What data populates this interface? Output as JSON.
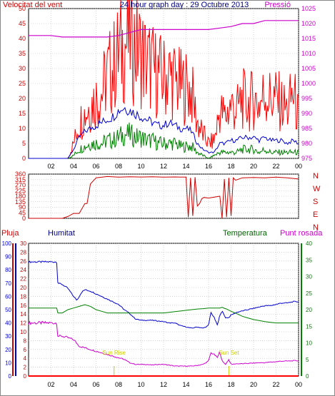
{
  "header": {
    "title": "24 hour graph day : 29 Octubre 2013",
    "wind_label": "Velocitat del vent",
    "pressure_label": "Pressió"
  },
  "bottom_header": {
    "rain_label": "Pluja",
    "humidity_label": "Humitat",
    "temperature_label": "Temperatura",
    "dewpoint_label": "Punt rosada"
  },
  "colors": {
    "wind_speed": "#ff0000",
    "wind_gust": "#ff0000",
    "wind_avg": "#0000cc",
    "wind_low": "#008000",
    "pressure": "#cc00cc",
    "direction": "#cc0000",
    "rain": "#ff0000",
    "humidity": "#0000cc",
    "temperature": "#008000",
    "dewpoint": "#cc00cc",
    "sun": "#cccc00"
  },
  "chart_data": [
    {
      "type": "line",
      "name": "wind",
      "x_tick_labels": [
        "02",
        "04",
        "06",
        "08",
        "10",
        "12",
        "14",
        "16",
        "18",
        "20",
        "22",
        "00"
      ],
      "xlim": [
        0,
        24
      ],
      "ylim_left": [
        0,
        50
      ],
      "left_ticks": [
        "0",
        "5",
        "10",
        "15",
        "20",
        "25",
        "30",
        "35",
        "40",
        "45",
        "50"
      ],
      "ylim_right": [
        975,
        1025
      ],
      "right_ticks": [
        "975",
        "980",
        "985",
        "990",
        "995",
        "1000",
        "1005",
        "1010",
        "1015",
        "1020",
        "1025"
      ],
      "series": [
        {
          "name": "Pressió",
          "axis": "right",
          "x": [
            0,
            1,
            2,
            3,
            4,
            5,
            6,
            7,
            8,
            9,
            10,
            11,
            12,
            13,
            14,
            15,
            16,
            17,
            18,
            19,
            20,
            21,
            22,
            23,
            24
          ],
          "values": [
            1016,
            1016,
            1016,
            1015.5,
            1015.5,
            1015.5,
            1015.5,
            1015.5,
            1016,
            1017,
            1018,
            1018,
            1018,
            1018,
            1018,
            1018,
            1018,
            1018.5,
            1019,
            1020,
            1020,
            1021,
            1021,
            1021,
            1021
          ]
        },
        {
          "name": "gust",
          "x": [
            0,
            3.5,
            4,
            4.5,
            5,
            5.5,
            6,
            6.5,
            7,
            7.5,
            8,
            8.5,
            9,
            9.5,
            10,
            10.5,
            11,
            11.5,
            12,
            12.5,
            13,
            13.5,
            14,
            14.5,
            15,
            15.5,
            16,
            16.5,
            17,
            17.5,
            18,
            18.5,
            19,
            19.5,
            20,
            20.5,
            21,
            21.5,
            22,
            22.5,
            23,
            23.5,
            24
          ],
          "values": [
            0,
            0,
            5,
            12,
            15,
            18,
            20,
            22,
            28,
            30,
            35,
            38,
            40,
            38,
            35,
            32,
            30,
            28,
            27,
            28,
            26,
            24,
            24,
            22,
            12,
            8,
            5,
            6,
            16,
            14,
            18,
            16,
            20,
            18,
            20,
            18,
            22,
            20,
            20,
            18,
            16,
            22,
            14
          ]
        },
        {
          "name": "avg",
          "x": [
            0,
            3.5,
            4,
            4.5,
            5,
            5.5,
            6,
            6.5,
            7,
            7.5,
            8,
            8.5,
            9,
            9.5,
            10,
            10.5,
            11,
            11.5,
            12,
            12.5,
            13,
            13.5,
            14,
            14.5,
            15,
            15.5,
            16,
            16.5,
            17,
            17.5,
            18,
            18.5,
            19,
            19.5,
            20,
            20.5,
            21,
            21.5,
            22,
            22.5,
            23,
            23.5,
            24
          ],
          "values": [
            0,
            0,
            3,
            7,
            9,
            10,
            11,
            12,
            13,
            14,
            16,
            17,
            16,
            15,
            14,
            13,
            12,
            11,
            11,
            12,
            11,
            10,
            10,
            9,
            5,
            3,
            2,
            2,
            5,
            5,
            6,
            6,
            7,
            7,
            7,
            6,
            7,
            6,
            6,
            6,
            5,
            6,
            5
          ]
        },
        {
          "name": "low",
          "x": [
            0,
            3.5,
            4,
            4.5,
            5,
            5.5,
            6,
            6.5,
            7,
            7.5,
            8,
            8.5,
            9,
            9.5,
            10,
            10.5,
            11,
            11.5,
            12,
            12.5,
            13,
            13.5,
            14,
            14.5,
            15,
            15.5,
            16,
            16.5,
            17,
            17.5,
            18,
            18.5,
            19,
            19.5,
            20,
            20.5,
            21,
            21.5,
            22,
            22.5,
            23,
            23.5,
            24
          ],
          "values": [
            0,
            0,
            1,
            3,
            4,
            5,
            5,
            5,
            6,
            6,
            7,
            8,
            8,
            7,
            7,
            6,
            6,
            5,
            5,
            5,
            5,
            4,
            4,
            4,
            2,
            1,
            0,
            1,
            2,
            2,
            2,
            2,
            3,
            3,
            3,
            2,
            3,
            2,
            2,
            2,
            2,
            2,
            2
          ]
        }
      ]
    },
    {
      "type": "line",
      "name": "wind-direction",
      "xlim": [
        0,
        24
      ],
      "ylim": [
        0,
        360
      ],
      "left_ticks": [
        "0",
        "45",
        "90",
        "135",
        "180",
        "225",
        "270",
        "315",
        "360"
      ],
      "right_labels": [
        "N",
        "W",
        "S",
        "E",
        "N"
      ],
      "series": [
        {
          "name": "direction",
          "x": [
            0,
            3,
            3.5,
            4,
            4.5,
            5,
            5.2,
            5.5,
            6,
            7,
            8,
            9,
            10,
            11,
            12,
            13,
            14,
            14.2,
            14.4,
            14.6,
            14.8,
            15,
            15.2,
            15.4,
            15.6,
            16,
            17,
            17.2,
            17.4,
            17.6,
            17.8,
            18,
            18.2,
            18.4,
            19,
            20,
            21,
            22,
            23,
            24
          ],
          "values": [
            0,
            0,
            15,
            40,
            40,
            120,
            120,
            280,
            330,
            340,
            335,
            338,
            336,
            338,
            335,
            337,
            335,
            10,
            330,
            20,
            335,
            100,
            120,
            160,
            170,
            165,
            180,
            0,
            320,
            10,
            330,
            20,
            330,
            310,
            330,
            332,
            330,
            335,
            330,
            320
          ]
        }
      ]
    },
    {
      "type": "line",
      "name": "temperature-humidity",
      "xlim": [
        0,
        24
      ],
      "x_tick_labels": [
        "02",
        "04",
        "06",
        "08",
        "10",
        "12",
        "14",
        "16",
        "18",
        "20",
        "22",
        "00"
      ],
      "ylim_rain": [
        0,
        30
      ],
      "rain_ticks": [
        "0",
        "2",
        "4",
        "6",
        "8",
        "10",
        "12",
        "14",
        "16",
        "18",
        "20",
        "22",
        "24",
        "26",
        "28",
        "30"
      ],
      "ylim_humidity": [
        0,
        100
      ],
      "humidity_ticks": [
        "0",
        "10",
        "20",
        "30",
        "40",
        "50",
        "60",
        "70",
        "80",
        "90",
        "100"
      ],
      "ylim_temp": [
        0,
        40
      ],
      "temp_ticks": [
        "0",
        "5",
        "10",
        "15",
        "20",
        "25",
        "30",
        "35",
        "40"
      ],
      "sunrise_label": "Sun Rise",
      "sunset_label": "Sun Set",
      "sunrise_x": 7.6,
      "sunset_x": 17.8,
      "series": [
        {
          "name": "humidity",
          "x": [
            0,
            2.5,
            2.6,
            3,
            3.5,
            4,
            4.3,
            4.7,
            5,
            5.5,
            6,
            6.5,
            7,
            7.5,
            8,
            8.5,
            9,
            9.5,
            10,
            11,
            12,
            12.5,
            13,
            13.5,
            14,
            14.5,
            15,
            15.5,
            16,
            16.2,
            16.5,
            16.8,
            17,
            17.2,
            17.5,
            17.8,
            18,
            18.5,
            19,
            19.5,
            20,
            20.5,
            21,
            21.5,
            22,
            22.5,
            23,
            23.5,
            24
          ],
          "values": [
            86,
            86,
            70,
            69,
            66,
            60,
            57,
            63,
            65,
            64,
            62,
            60,
            58,
            56,
            54,
            50,
            47,
            43,
            42,
            42,
            41,
            40,
            40,
            38,
            37,
            36,
            37,
            36,
            38,
            48,
            44,
            38,
            46,
            49,
            44,
            44,
            46,
            48,
            49,
            50,
            51,
            52,
            53,
            53,
            54,
            55,
            55,
            56,
            56
          ]
        },
        {
          "name": "temperature",
          "x": [
            0,
            2.5,
            2.6,
            3,
            3.5,
            4,
            4.5,
            5,
            5.5,
            6,
            6.5,
            7,
            7.5,
            8,
            8.5,
            9,
            9.5,
            10,
            10.5,
            11,
            11.5,
            12,
            12.5,
            13,
            13.5,
            14,
            14.5,
            15,
            15.5,
            16,
            16.5,
            17,
            17.2,
            17.4,
            17.6,
            18,
            18.5,
            19,
            19.5,
            20,
            20.5,
            21,
            21.5,
            22,
            22.5,
            23,
            23.5,
            24
          ],
          "values": [
            20.5,
            20.5,
            19,
            19,
            20,
            20.5,
            21,
            21.5,
            21,
            20,
            19.5,
            19,
            19,
            19,
            19,
            19,
            19,
            19,
            19,
            19,
            19,
            19,
            19.2,
            19.4,
            19.6,
            19.8,
            20,
            20.2,
            20.3,
            20.5,
            20.5,
            20.5,
            20.7,
            20.4,
            20.2,
            19.5,
            18.8,
            18,
            17.5,
            17,
            16.7,
            16.4,
            16.2,
            16,
            16,
            16,
            16,
            16
          ]
        },
        {
          "name": "dewpoint",
          "x": [
            0,
            2.5,
            2.6,
            3,
            3.5,
            4,
            4.5,
            5,
            5.5,
            6,
            6.5,
            7,
            7.5,
            8,
            8.5,
            9,
            9.5,
            10,
            10.5,
            11,
            11.5,
            12,
            12.5,
            13,
            13.5,
            14,
            14.5,
            15,
            15.5,
            16,
            16.2,
            16.5,
            16.8,
            17,
            17.2,
            17.5,
            17.8,
            18,
            18.5,
            19,
            19.5,
            20,
            20.5,
            21,
            21.5,
            22,
            22.5,
            23,
            23.5,
            24
          ],
          "values": [
            16,
            16,
            12,
            12,
            11.5,
            11,
            9,
            8.5,
            8,
            7.5,
            7,
            6.5,
            6,
            5.5,
            5,
            4,
            3.5,
            3.5,
            3.5,
            3.3,
            3.5,
            3.5,
            3.3,
            3,
            3,
            3,
            3,
            3.2,
            3.5,
            4.5,
            7,
            6.5,
            5.5,
            7.5,
            4.5,
            3.5,
            5,
            3.5,
            3.7,
            3.7,
            3.8,
            3.9,
            4,
            4,
            4.2,
            4.3,
            4.5,
            4.5,
            4.6,
            4.6
          ]
        },
        {
          "name": "rain",
          "x": [
            0,
            24
          ],
          "values": [
            0,
            0
          ]
        }
      ]
    }
  ]
}
